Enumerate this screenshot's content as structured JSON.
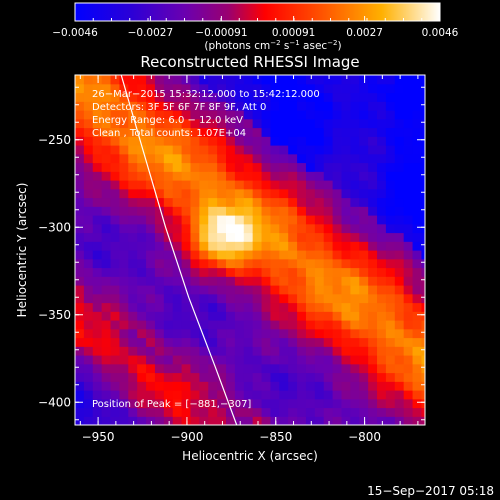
{
  "chart_data": {
    "type": "heatmap",
    "title": "Reconstructed RHESSI Image",
    "xlabel": "Heliocentric X (arcsec)",
    "ylabel": "Heliocentric Y (arcsec)",
    "xlim": [
      -963,
      -766
    ],
    "ylim": [
      -413,
      -213
    ],
    "x_ticks": [
      {
        "value": -950,
        "label": "−950"
      },
      {
        "value": -900,
        "label": "−900"
      },
      {
        "value": -850,
        "label": "−850"
      },
      {
        "value": -800,
        "label": "−800"
      }
    ],
    "y_ticks": [
      {
        "value": -250,
        "label": "−250"
      },
      {
        "value": -300,
        "label": "−300"
      },
      {
        "value": -350,
        "label": "−350"
      },
      {
        "value": -400,
        "label": "−400"
      }
    ],
    "colorbar": {
      "min": -0.0046,
      "max": 0.0046,
      "tick_values": [
        -0.0046,
        -0.0027,
        -0.00091,
        0.00091,
        0.0027,
        0.0046
      ],
      "tick_labels": [
        "−0.0046",
        "−0.0027",
        "−0.00091",
        "0.00091",
        "0.0027",
        "0.0046"
      ],
      "label_prefix": "(photons cm",
      "label_sup1": "−2",
      "label_mid": " s",
      "label_sup2": "−1",
      "label_end": " asec",
      "label_sup3": "−2",
      "label_close": ")"
    },
    "annotations": [
      "26−Mar−2015 15:32:12.000 to 15:42:12.000",
      "Detectors: 3F 5F 6F 7F 8F 9F, Att 0",
      "Energy Range: 6.0 − 12.0 keV",
      "Clean , Total counts: 1.07E+04"
    ],
    "peak_label": "Position of Peak = [−881,−307]",
    "peak": [
      -881,
      -307
    ],
    "limb_curve": [
      [
        -937,
        -213
      ],
      [
        -925,
        -255
      ],
      [
        -912,
        -300
      ],
      [
        -899,
        -340
      ],
      [
        -884,
        -380
      ],
      [
        -872,
        -413
      ]
    ],
    "bright_ridge": {
      "from": [
        -950,
        -230
      ],
      "to": [
        -790,
        -355
      ],
      "half_width": 32
    },
    "colors": {
      "background": "#000000",
      "foreground": "#ffffff"
    }
  },
  "footer": {
    "timestamp": "15−Sep−2017 05:18"
  }
}
